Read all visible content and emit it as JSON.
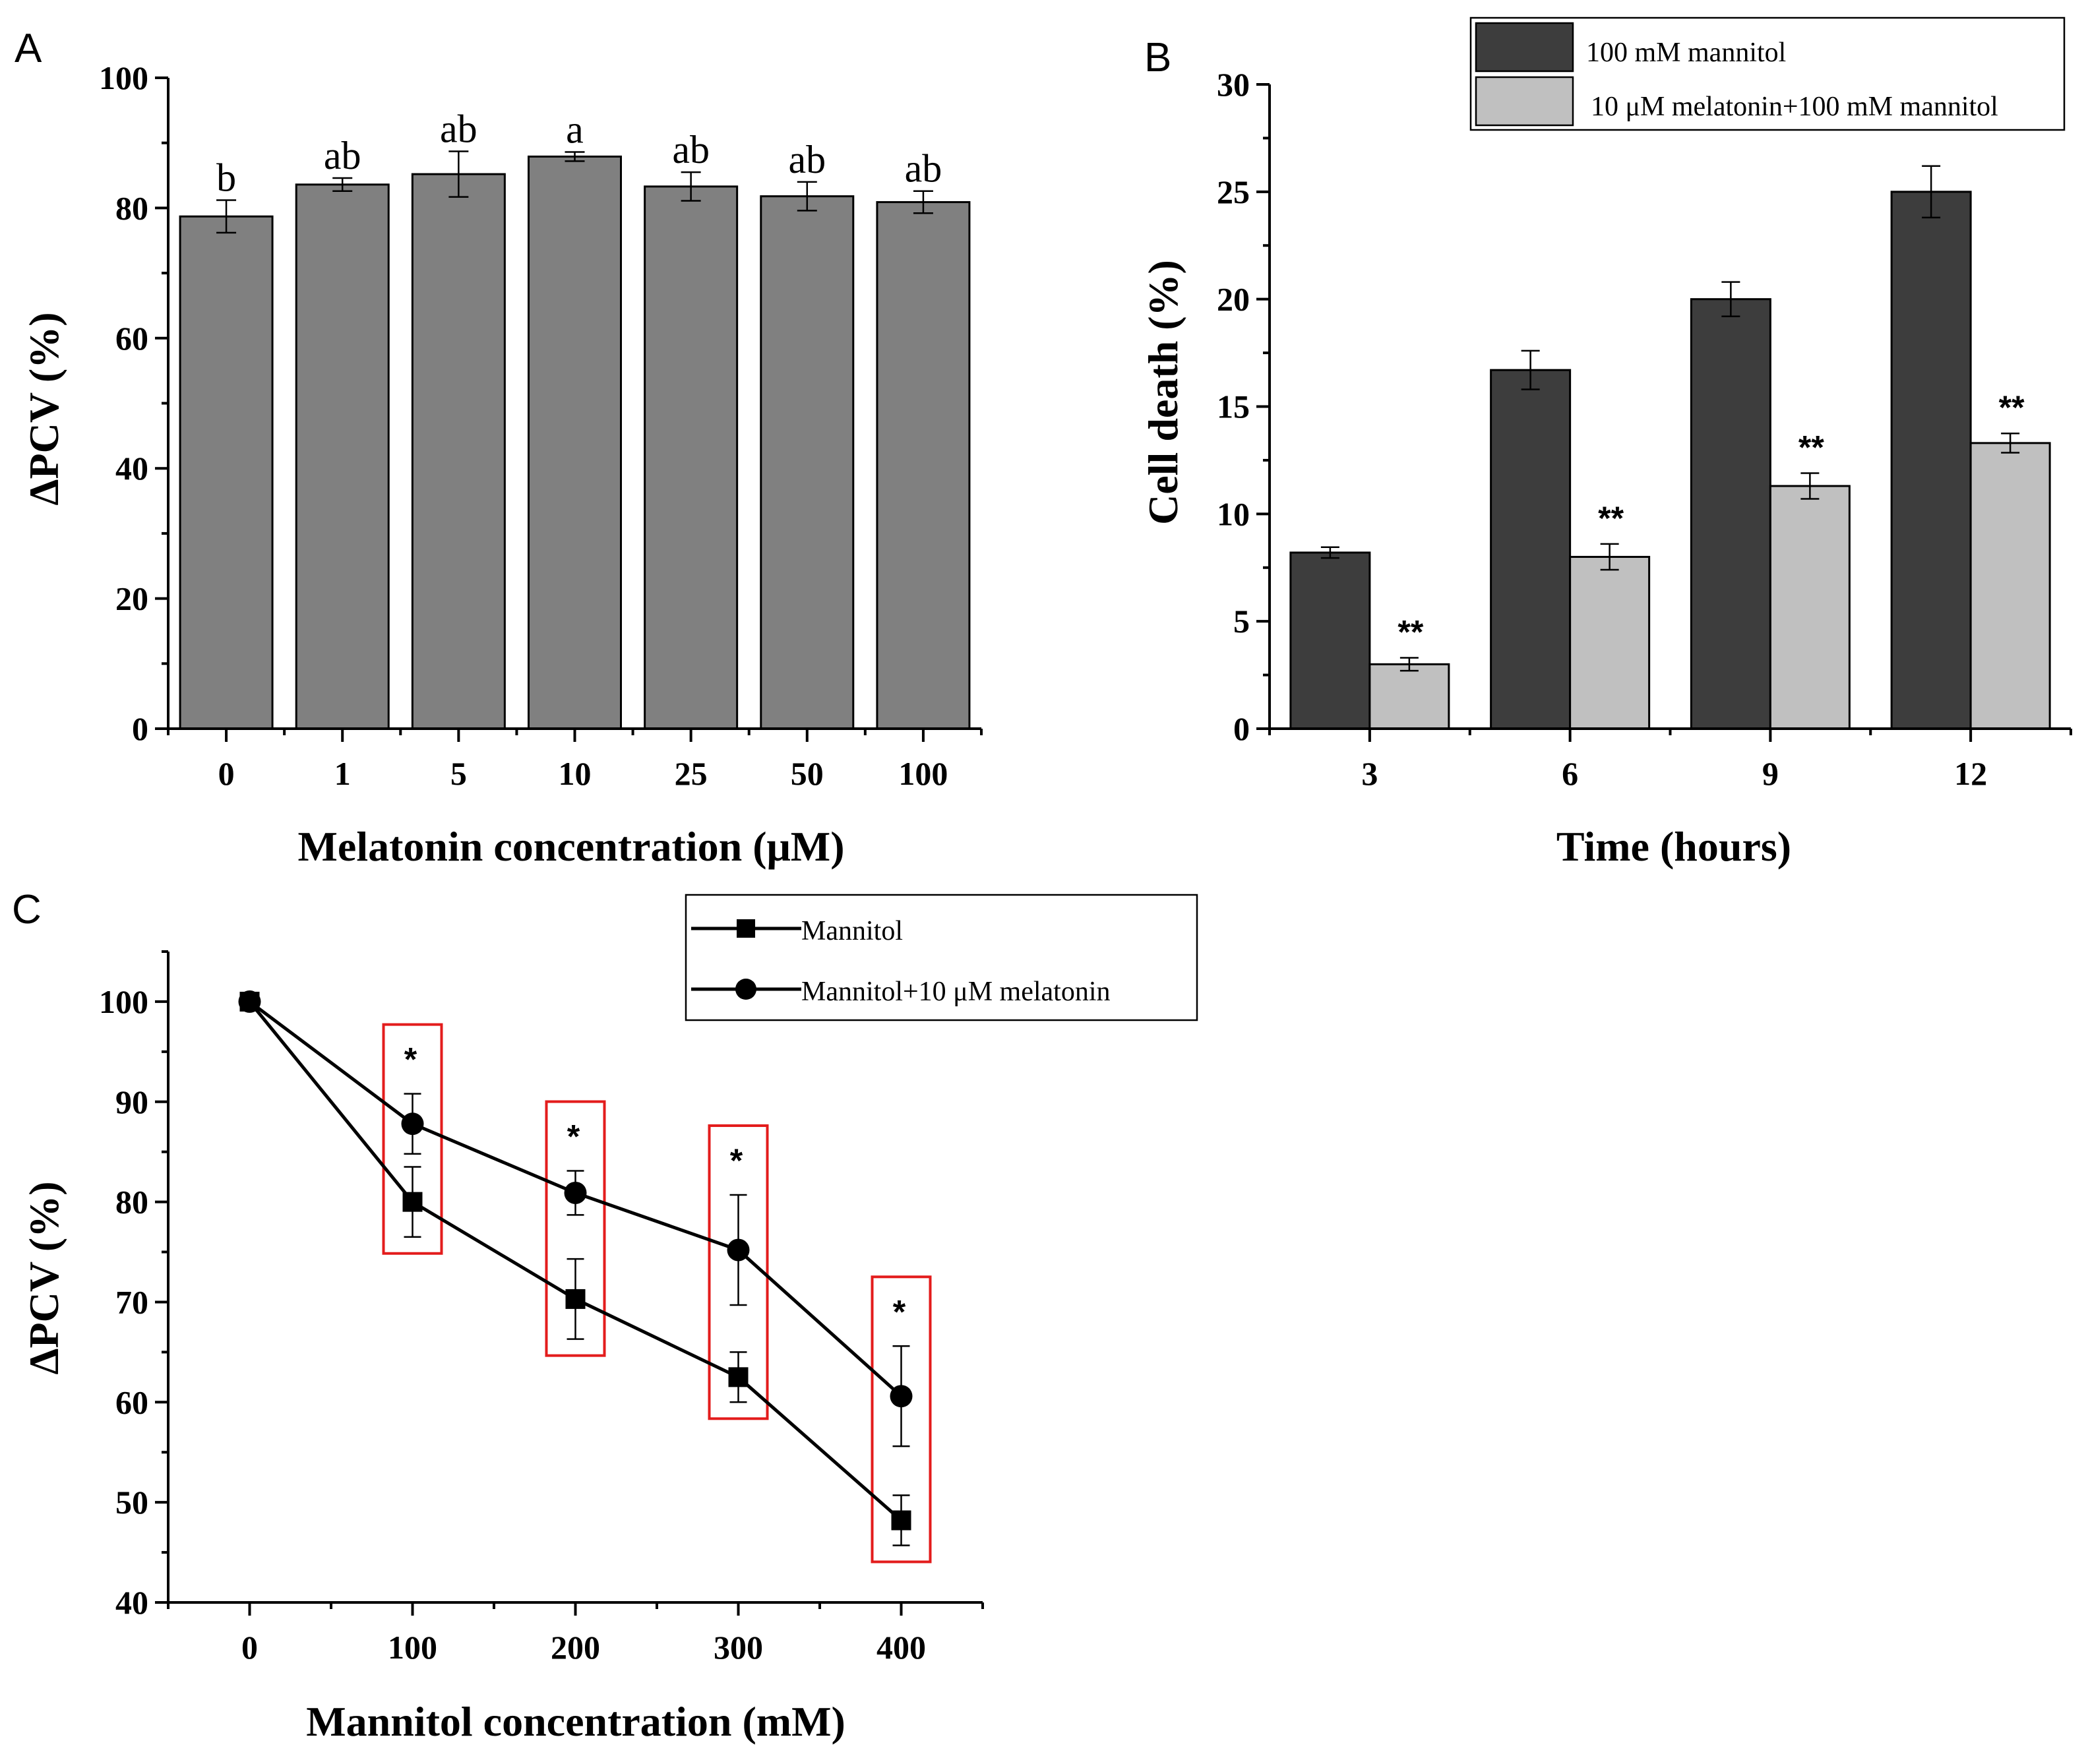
{
  "chart_data": [
    {
      "panel": "A",
      "type": "bar",
      "xlabel": "Melatonin concentration (μM)",
      "ylabel": "ΔPCV (%)",
      "ylim": [
        0,
        100
      ],
      "yticks": [
        "0",
        "20",
        "40",
        "60",
        "80",
        "100"
      ],
      "categories": [
        "0",
        "1",
        "5",
        "10",
        "25",
        "50",
        "100"
      ],
      "values": [
        78.7,
        83.6,
        85.2,
        87.9,
        83.3,
        81.8,
        80.9
      ],
      "errors": [
        2.5,
        1.0,
        3.5,
        0.7,
        2.2,
        2.2,
        1.7
      ],
      "letters": [
        "b",
        "ab",
        "ab",
        "a",
        "ab",
        "ab",
        "ab"
      ],
      "bar_color": "#808080"
    },
    {
      "panel": "B",
      "type": "bar",
      "xlabel": "Time (hours)",
      "ylabel": "Cell death (%)",
      "ylim": [
        0,
        30
      ],
      "yticks": [
        "0",
        "5",
        "10",
        "15",
        "20",
        "25",
        "30"
      ],
      "categories": [
        "3",
        "6",
        "9",
        "12"
      ],
      "series": [
        {
          "name": "100 mM mannitol",
          "color": "#3d3d3d",
          "values": [
            8.2,
            16.7,
            20.0,
            25.0
          ],
          "errors": [
            0.25,
            0.9,
            0.8,
            1.2
          ],
          "marks": [
            "",
            "",
            "",
            ""
          ]
        },
        {
          "name": "10 μM melatonin+100 mM mannitol",
          "color": "#c0c0c0",
          "values": [
            3.0,
            8.0,
            11.3,
            13.3
          ],
          "errors": [
            0.3,
            0.6,
            0.6,
            0.45
          ],
          "marks": [
            "**",
            "**",
            "**",
            "**"
          ]
        }
      ]
    },
    {
      "panel": "C",
      "type": "line",
      "xlabel": "Mannitol concentration (mM)",
      "ylabel": "ΔPCV (%)",
      "xlim": [
        -50,
        450
      ],
      "ylim": [
        40,
        105
      ],
      "xticks": [
        "0",
        "100",
        "200",
        "300",
        "400"
      ],
      "yticks": [
        "40",
        "50",
        "60",
        "70",
        "80",
        "90",
        "100"
      ],
      "x": [
        0,
        100,
        200,
        300,
        400
      ],
      "series": [
        {
          "name": "Mannitol",
          "marker": "square",
          "values": [
            100,
            80.0,
            70.3,
            62.5,
            48.2
          ],
          "errors": [
            0,
            3.5,
            4.0,
            2.5,
            2.5
          ]
        },
        {
          "name": "Mannitol+10 μM melatonin",
          "marker": "circle",
          "values": [
            100,
            87.8,
            80.9,
            75.2,
            60.6
          ],
          "errors": [
            0,
            3.0,
            2.2,
            5.5,
            5.0
          ]
        }
      ],
      "significance": [
        "*",
        "*",
        "*",
        "*"
      ],
      "highlight_color": "#e31c1c"
    }
  ]
}
